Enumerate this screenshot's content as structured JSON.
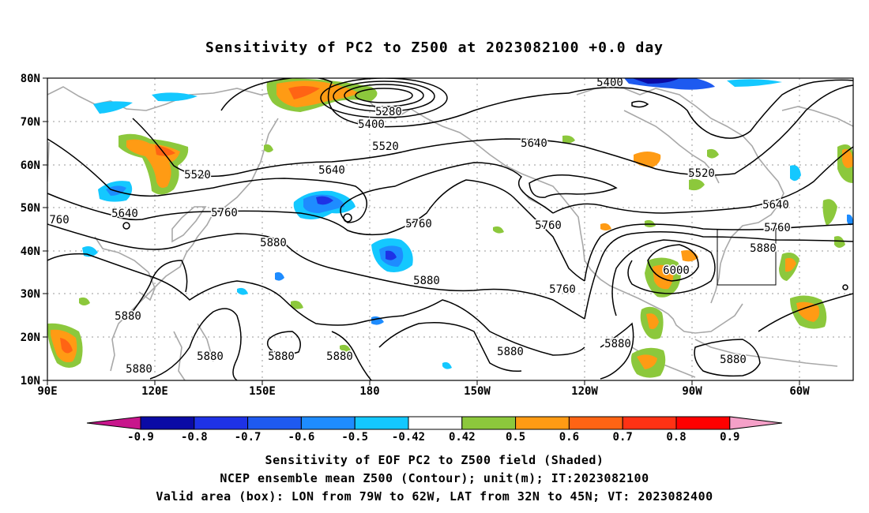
{
  "title": "Sensitivity of PC2 to Z500 at 2023082100 +0.0 day",
  "axes": {
    "lat_labels": [
      "80N",
      "70N",
      "60N",
      "50N",
      "40N",
      "30N",
      "20N",
      "10N"
    ],
    "lon_labels": [
      "90E",
      "120E",
      "150E",
      "180",
      "150W",
      "120W",
      "90W",
      "60W"
    ]
  },
  "contour_labels": [
    "5280",
    "5400",
    "5400",
    "5520",
    "5520",
    "5520",
    "5640",
    "5640",
    "5640",
    "5640",
    "5760",
    "5760",
    "5760",
    "5760",
    "5760",
    "760",
    "5880",
    "5880",
    "5880",
    "5880",
    "5880",
    "5880",
    "5880",
    "5880",
    "5880",
    "5880",
    "5880",
    "6000"
  ],
  "colorbar": {
    "ticks": [
      "-0.9",
      "-0.8",
      "-0.7",
      "-0.6",
      "-0.5",
      "-0.42",
      "0.42",
      "0.5",
      "0.6",
      "0.7",
      "0.8",
      "0.9"
    ],
    "colors": [
      "#c8168c",
      "#0a0aa5",
      "#1e32e6",
      "#1e5af0",
      "#1e8cff",
      "#14c8ff",
      "#ffffff",
      "#8cc83c",
      "#ff9b14",
      "#ff6414",
      "#ff3214",
      "#ff0000",
      "#f5a0c8"
    ]
  },
  "captions": [
    "Sensitivity of EOF PC2 to Z500 field (Shaded)",
    "NCEP ensemble mean Z500 (Contour); unit(m); IT:2023082100",
    "Valid area (box): LON from 79W to 62W, LAT from 32N to 45N; VT: 2023082400"
  ]
}
